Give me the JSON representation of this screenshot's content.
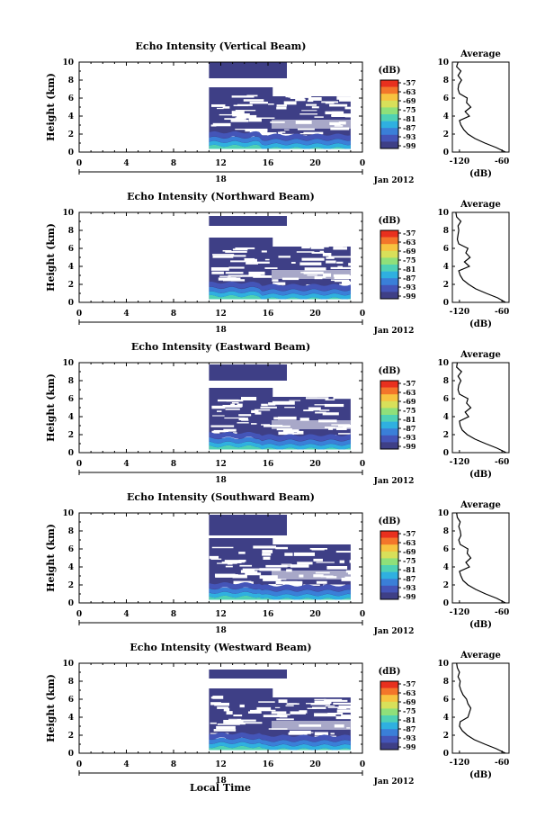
{
  "figure": {
    "xlabel": "Local Time",
    "date_label": "Jan 2012",
    "day_label": "18",
    "colorbar_unit": "(dB)",
    "colorbar_ticks": [
      "-57",
      "-63",
      "-69",
      "-75",
      "-81",
      "-87",
      "-93",
      "-99"
    ],
    "colorbar_colors": [
      "#e8301e",
      "#f3762a",
      "#f7c340",
      "#d8e05a",
      "#8fe07a",
      "#4fd1b4",
      "#2fb0e0",
      "#3a7fd8",
      "#4455b8",
      "#3e3f86"
    ],
    "average_title": "Average",
    "average_xlabel": "(dB)",
    "average_xticks": [
      "-120",
      "-60"
    ],
    "height_label": "Height (km)",
    "x_ticks": [
      "0",
      "4",
      "8",
      "12",
      "16",
      "20",
      "0"
    ],
    "y_ticks": [
      "0",
      "2",
      "4",
      "6",
      "8",
      "10"
    ]
  },
  "chart_data": [
    {
      "type": "heatmap",
      "title": "Echo Intensity (Vertical Beam)",
      "xlabel": "Local Time",
      "ylabel": "Height (km)",
      "xlim": [
        0,
        24
      ],
      "ylim": [
        0,
        10
      ],
      "data_start_hour": 11,
      "data_end_hour": 23,
      "echo_top_km": 10,
      "upper_layer": [
        8.2,
        10
      ],
      "low_intense_layer_km": [
        0.3,
        2.0
      ],
      "colorbar": {
        "unit": "dB",
        "min": -99,
        "max": -57
      },
      "average_profile": {
        "xlabel": "(dB)",
        "xlim": [
          -130,
          -50
        ],
        "height": [
          0,
          0.5,
          1,
          1.5,
          2,
          2.5,
          3,
          3.5,
          4,
          4.5,
          5,
          5.5,
          6,
          6.5,
          7,
          7.5,
          8,
          8.5,
          9,
          9.5,
          10
        ],
        "value": [
          -55,
          -68,
          -84,
          -98,
          -108,
          -114,
          -118,
          -120,
          -106,
          -112,
          -104,
          -110,
          -109,
          -120,
          -122,
          -121,
          -117,
          -122,
          -118,
          -124,
          -122
        ]
      }
    },
    {
      "type": "heatmap",
      "title": "Echo Intensity (Northward Beam)",
      "xlabel": "Local Time",
      "ylabel": "Height (km)",
      "xlim": [
        0,
        24
      ],
      "ylim": [
        0,
        10
      ],
      "data_start_hour": 11,
      "data_end_hour": 23,
      "echo_top_km": 9.6,
      "upper_layer": [
        8.5,
        9.6
      ],
      "low_intense_layer_km": [
        0.3,
        2.0
      ],
      "colorbar": {
        "unit": "dB",
        "min": -99,
        "max": -57
      },
      "average_profile": {
        "xlabel": "(dB)",
        "xlim": [
          -130,
          -50
        ],
        "height": [
          0,
          0.5,
          1,
          1.5,
          2,
          2.5,
          3,
          3.5,
          4,
          4.5,
          5,
          5.5,
          6,
          6.5,
          7,
          7.5,
          8,
          8.5,
          9,
          9.5,
          10
        ],
        "value": [
          -55,
          -66,
          -82,
          -97,
          -107,
          -115,
          -119,
          -121,
          -106,
          -113,
          -105,
          -111,
          -108,
          -121,
          -123,
          -122,
          -121,
          -122,
          -118,
          -124,
          -125
        ]
      }
    },
    {
      "type": "heatmap",
      "title": "Echo Intensity (Eastward Beam)",
      "xlabel": "Local Time",
      "ylabel": "Height (km)",
      "xlim": [
        0,
        24
      ],
      "ylim": [
        0,
        10
      ],
      "data_start_hour": 11,
      "data_end_hour": 23,
      "echo_top_km": 9.8,
      "upper_layer": [
        8.0,
        9.8
      ],
      "low_intense_layer_km": [
        0.3,
        2.0
      ],
      "colorbar": {
        "unit": "dB",
        "min": -99,
        "max": -57
      },
      "average_profile": {
        "xlabel": "(dB)",
        "xlim": [
          -130,
          -50
        ],
        "height": [
          0,
          0.5,
          1,
          1.5,
          2,
          2.5,
          3,
          3.5,
          4,
          4.5,
          5,
          5.5,
          6,
          6.5,
          7,
          7.5,
          8,
          8.5,
          9,
          9.5,
          10
        ],
        "value": [
          -54,
          -67,
          -83,
          -98,
          -109,
          -116,
          -119,
          -120,
          -107,
          -112,
          -104,
          -110,
          -108,
          -120,
          -122,
          -121,
          -118,
          -122,
          -117,
          -124,
          -123
        ]
      }
    },
    {
      "type": "heatmap",
      "title": "Echo Intensity (Southward Beam)",
      "xlabel": "Local Time",
      "ylabel": "Height (km)",
      "xlim": [
        0,
        24
      ],
      "ylim": [
        0,
        10
      ],
      "data_start_hour": 11,
      "data_end_hour": 23,
      "echo_top_km": 9.8,
      "upper_layer": [
        7.5,
        9.8
      ],
      "low_intense_layer_km": [
        0.3,
        2.0
      ],
      "colorbar": {
        "unit": "dB",
        "min": -99,
        "max": -57
      },
      "average_profile": {
        "xlabel": "(dB)",
        "xlim": [
          -130,
          -50
        ],
        "height": [
          0,
          0.5,
          1,
          1.5,
          2,
          2.5,
          3,
          3.5,
          4,
          4.5,
          5,
          5.5,
          6,
          6.5,
          7,
          7.5,
          8,
          8.5,
          9,
          9.5,
          10
        ],
        "value": [
          -55,
          -67,
          -83,
          -97,
          -108,
          -115,
          -118,
          -120,
          -106,
          -111,
          -104,
          -109,
          -108,
          -119,
          -121,
          -118,
          -119,
          -121,
          -119,
          -123,
          -124
        ]
      }
    },
    {
      "type": "heatmap",
      "title": "Echo Intensity (Westward Beam)",
      "xlabel": "Local Time",
      "ylabel": "Height (km)",
      "xlim": [
        0,
        24
      ],
      "ylim": [
        0,
        10
      ],
      "data_start_hour": 11,
      "data_end_hour": 23,
      "echo_top_km": 9.3,
      "upper_layer": [
        8.3,
        9.3
      ],
      "low_intense_layer_km": [
        0.3,
        2.0
      ],
      "colorbar": {
        "unit": "dB",
        "min": -99,
        "max": -57
      },
      "average_profile": {
        "xlabel": "(dB)",
        "xlim": [
          -130,
          -50
        ],
        "height": [
          0,
          0.5,
          1,
          1.5,
          2,
          2.5,
          3,
          3.5,
          4,
          4.5,
          5,
          5.5,
          6,
          6.5,
          7,
          7.5,
          8,
          8.5,
          9,
          9.5,
          10
        ],
        "value": [
          -55,
          -68,
          -84,
          -99,
          -109,
          -116,
          -120,
          -119,
          -108,
          -106,
          -104,
          -108,
          -110,
          -115,
          -118,
          -120,
          -119,
          -122,
          -120,
          -123,
          -124
        ]
      }
    }
  ]
}
